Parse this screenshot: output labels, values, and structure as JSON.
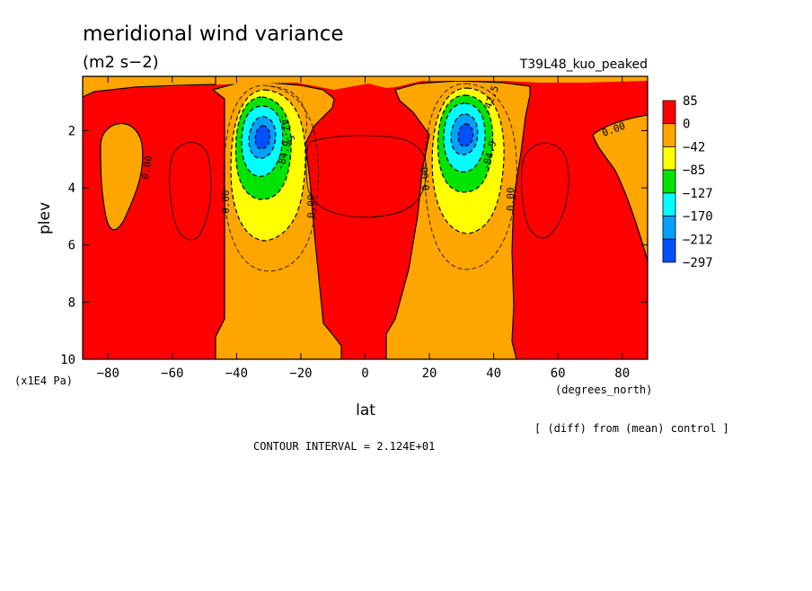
{
  "chart_data": {
    "type": "heatmap",
    "title": "meridional wind variance",
    "subtitle": "(m2 s−2)",
    "case_label": "T39L48_kuo_peaked",
    "xlabel": "lat",
    "x_units": "(degrees_north)",
    "ylabel": "plev",
    "y_units": "(x1E4 Pa)",
    "x_ticks": [
      -80,
      -60,
      -40,
      -20,
      0,
      20,
      40,
      60,
      80
    ],
    "y_ticks": [
      2,
      4,
      6,
      8,
      10
    ],
    "x_range": [
      -87.9,
      87.9
    ],
    "y_range": [
      0.1,
      10
    ],
    "y_inverted": true,
    "contour_labels": [
      "0.00",
      "0.00",
      "0.00",
      "0.00",
      "0.00",
      "0.00",
      "0.00",
      "-42.5",
      "-84.9",
      "-42.5",
      "-84.9"
    ],
    "legend": {
      "levels": [
        "85",
        "0",
        "−42",
        "−85",
        "−127",
        "−170",
        "−212",
        "−297"
      ],
      "colors": [
        "#ff0000",
        "#ffa500",
        "#ffff00",
        "#00e400",
        "#00ffff",
        "#00a0ff",
        "#0050ff"
      ]
    },
    "contour_interval_text": "CONTOUR INTERVAL = 2.124E+01",
    "diff_note": "[ (diff) from (mean) control ]"
  }
}
